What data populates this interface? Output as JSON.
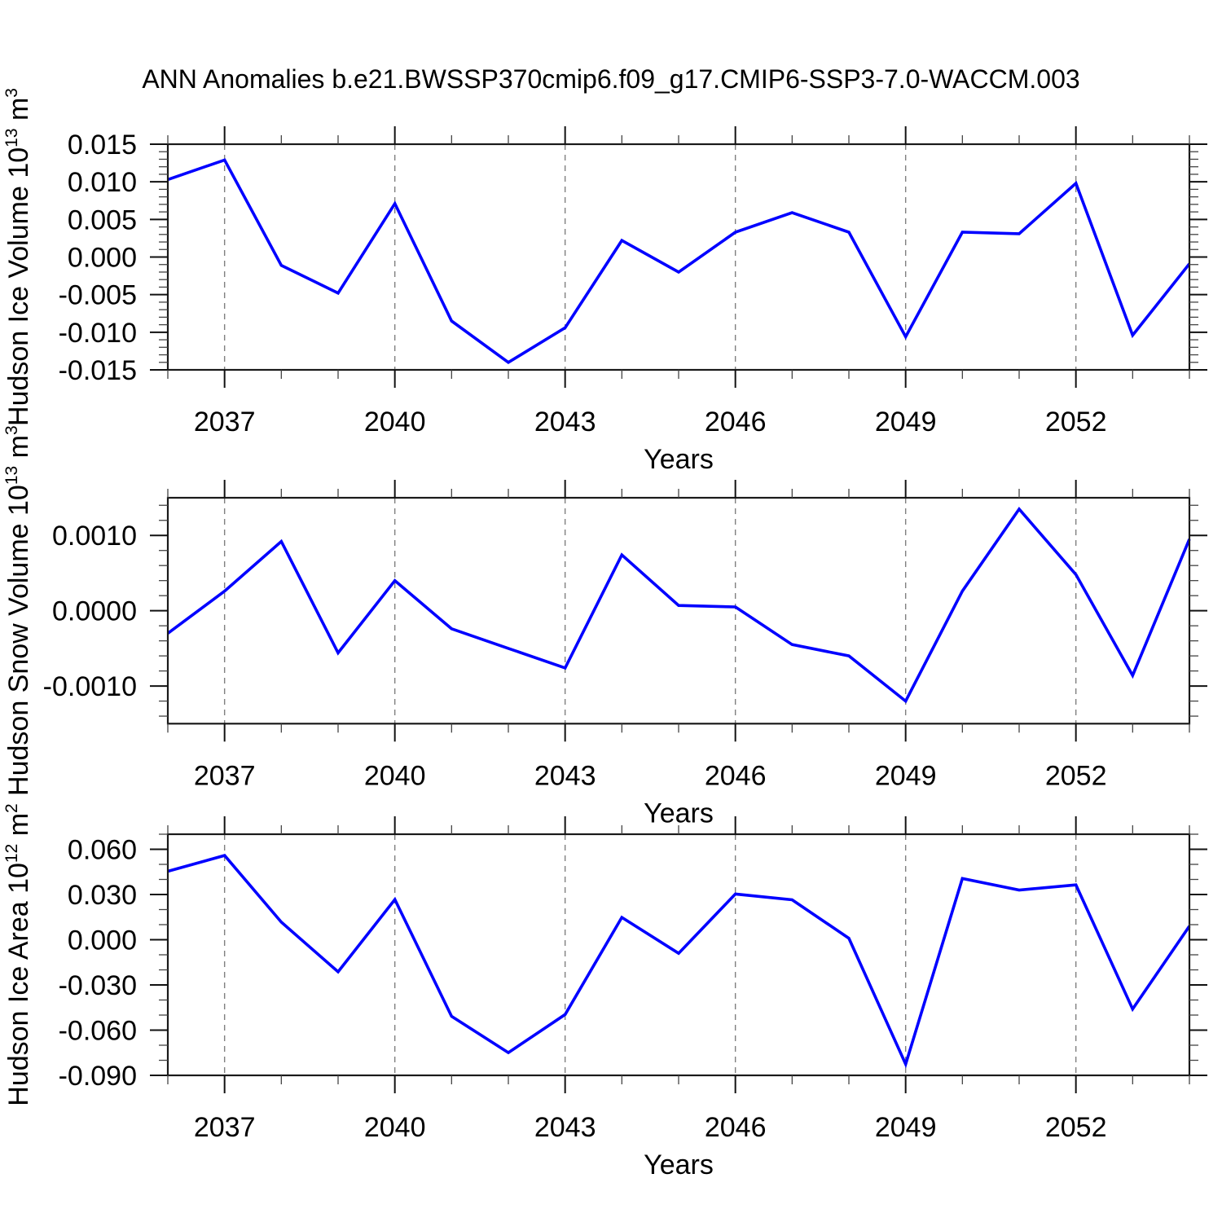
{
  "title": "ANN Anomalies b.e21.BWSSP370cmip6.f09_g17.CMIP6-SSP3-7.0-WACCM.003",
  "colors": {
    "line": "#0000ff",
    "grid": "#808080",
    "frame": "#1a1a1a",
    "tick_major": "#111111",
    "tick_minor": "#444444",
    "text": "#000000"
  },
  "chart_data": [
    {
      "type": "line",
      "name": "hudson-ice-volume",
      "ylabel": "Hudson Ice Volume 10^13 m^3",
      "ylabel_segments": [
        {
          "text": "Hudson Ice Volume 10",
          "sup": false
        },
        {
          "text": "13",
          "sup": true
        },
        {
          "text": " m",
          "sup": false
        },
        {
          "text": "3",
          "sup": true
        }
      ],
      "xlabel": "Years",
      "x": [
        2036,
        2037,
        2038,
        2039,
        2040,
        2041,
        2042,
        2043,
        2044,
        2045,
        2046,
        2047,
        2048,
        2049,
        2050,
        2051,
        2052,
        2053,
        2054
      ],
      "values": [
        0.0103,
        0.0129,
        -0.0011,
        -0.0048,
        0.0071,
        -0.0085,
        -0.014,
        -0.0094,
        0.0022,
        -0.002,
        0.0033,
        0.0059,
        0.0033,
        -0.0106,
        0.0033,
        0.0031,
        0.0098,
        -0.0104,
        -0.0009
      ],
      "xlim": [
        2036,
        2054
      ],
      "ylim": [
        -0.015,
        0.015
      ],
      "yticks": [
        {
          "v": 0.015,
          "label": "0.015"
        },
        {
          "v": 0.01,
          "label": "0.010"
        },
        {
          "v": 0.005,
          "label": "0.005"
        },
        {
          "v": 0.0,
          "label": "0.000"
        },
        {
          "v": -0.005,
          "label": "-0.005"
        },
        {
          "v": -0.01,
          "label": "-0.010"
        },
        {
          "v": -0.015,
          "label": "-0.015"
        }
      ],
      "ytick_minor_step": 0.001,
      "xticks_major": [
        2037,
        2040,
        2043,
        2046,
        2049,
        2052
      ],
      "grid_years": [
        2037,
        2040,
        2043,
        2046,
        2049,
        2052
      ]
    },
    {
      "type": "line",
      "name": "hudson-snow-volume",
      "ylabel": "Hudson Snow Volume 10^13 m^3",
      "ylabel_segments": [
        {
          "text": "Hudson Snow Volume 10",
          "sup": false
        },
        {
          "text": "13",
          "sup": true
        },
        {
          "text": " m",
          "sup": false
        },
        {
          "text": "3",
          "sup": true
        }
      ],
      "xlabel": "Years",
      "x": [
        2036,
        2037,
        2038,
        2039,
        2040,
        2041,
        2042,
        2043,
        2044,
        2045,
        2046,
        2047,
        2048,
        2049,
        2050,
        2051,
        2052,
        2053,
        2054
      ],
      "values": [
        -0.0003,
        0.00026,
        0.00092,
        -0.00056,
        0.0004,
        -0.00024,
        -0.0005,
        -0.00076,
        0.00074,
        7e-05,
        5e-05,
        -0.00045,
        -0.0006,
        -0.0012,
        0.00026,
        0.00135,
        0.00048,
        -0.00086,
        0.00095
      ],
      "xlim": [
        2036,
        2054
      ],
      "ylim": [
        -0.0015,
        0.0015
      ],
      "yticks": [
        {
          "v": 0.001,
          "label": "0.0010"
        },
        {
          "v": 0.0,
          "label": "0.0000"
        },
        {
          "v": -0.001,
          "label": "-0.0010"
        }
      ],
      "ytick_minor_step": 0.0002,
      "xticks_major": [
        2037,
        2040,
        2043,
        2046,
        2049,
        2052
      ],
      "grid_years": [
        2037,
        2040,
        2043,
        2046,
        2049,
        2052
      ]
    },
    {
      "type": "line",
      "name": "hudson-ice-area",
      "ylabel": "Hudson Ice Area 10^12 m^2",
      "ylabel_segments": [
        {
          "text": "Hudson Ice Area 10",
          "sup": false
        },
        {
          "text": "12",
          "sup": true
        },
        {
          "text": " m",
          "sup": false
        },
        {
          "text": "2",
          "sup": true
        }
      ],
      "xlabel": "Years",
      "x": [
        2036,
        2037,
        2038,
        2039,
        2040,
        2041,
        2042,
        2043,
        2044,
        2045,
        2046,
        2047,
        2048,
        2049,
        2050,
        2051,
        2052,
        2053,
        2054
      ],
      "values": [
        0.0454,
        0.0559,
        0.0117,
        -0.0213,
        0.0267,
        -0.0508,
        -0.0749,
        -0.0496,
        0.0148,
        -0.009,
        0.0303,
        0.0265,
        0.001,
        -0.0826,
        0.0406,
        0.033,
        0.0364,
        -0.046,
        0.009
      ],
      "xlim": [
        2036,
        2054
      ],
      "ylim": [
        -0.09,
        0.07
      ],
      "yticks": [
        {
          "v": 0.06,
          "label": "0.060"
        },
        {
          "v": 0.03,
          "label": "0.030"
        },
        {
          "v": 0.0,
          "label": "0.000"
        },
        {
          "v": -0.03,
          "label": "-0.030"
        },
        {
          "v": -0.06,
          "label": "-0.060"
        },
        {
          "v": -0.09,
          "label": "-0.090"
        }
      ],
      "ytick_minor_step": 0.01,
      "xticks_major": [
        2037,
        2040,
        2043,
        2046,
        2049,
        2052
      ],
      "grid_years": [
        2037,
        2040,
        2043,
        2046,
        2049,
        2052
      ]
    }
  ]
}
